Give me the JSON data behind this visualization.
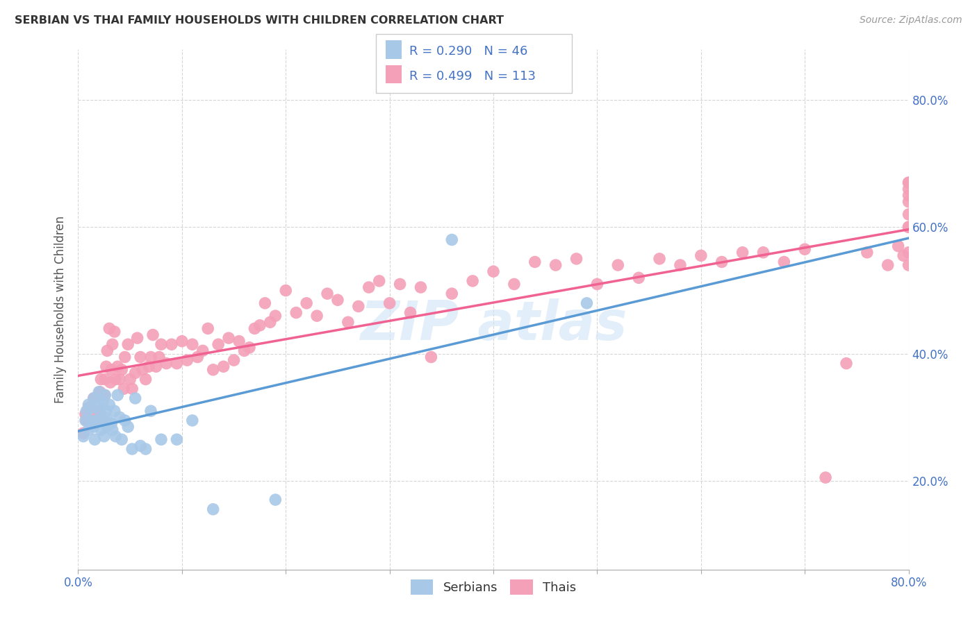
{
  "title": "SERBIAN VS THAI FAMILY HOUSEHOLDS WITH CHILDREN CORRELATION CHART",
  "source": "Source: ZipAtlas.com",
  "ylabel": "Family Households with Children",
  "xlim": [
    0.0,
    0.8
  ],
  "ylim": [
    0.06,
    0.88
  ],
  "yticks": [
    0.2,
    0.4,
    0.6,
    0.8
  ],
  "ytick_labels": [
    "20.0%",
    "40.0%",
    "60.0%",
    "80.0%"
  ],
  "xticks": [
    0.0,
    0.1,
    0.2,
    0.3,
    0.4,
    0.5,
    0.6,
    0.7,
    0.8
  ],
  "serbian_color": "#a8c8e8",
  "thai_color": "#f4a0b8",
  "serbian_line_color": "#5b9bd5",
  "thai_line_color": "#f06292",
  "r_serbian": 0.29,
  "n_serbian": 46,
  "r_thai": 0.499,
  "n_thai": 113,
  "background_color": "#ffffff",
  "grid_color": "#cccccc",
  "axis_label_color": "#4472c4",
  "serbian_x": [
    0.005,
    0.007,
    0.008,
    0.01,
    0.01,
    0.012,
    0.013,
    0.015,
    0.015,
    0.016,
    0.018,
    0.019,
    0.02,
    0.02,
    0.021,
    0.022,
    0.023,
    0.024,
    0.025,
    0.025,
    0.026,
    0.027,
    0.028,
    0.029,
    0.03,
    0.032,
    0.033,
    0.035,
    0.036,
    0.038,
    0.04,
    0.042,
    0.045,
    0.048,
    0.052,
    0.055,
    0.06,
    0.065,
    0.07,
    0.08,
    0.095,
    0.11,
    0.13,
    0.19,
    0.36,
    0.49
  ],
  "serbian_y": [
    0.27,
    0.295,
    0.31,
    0.28,
    0.32,
    0.295,
    0.315,
    0.285,
    0.33,
    0.265,
    0.295,
    0.32,
    0.34,
    0.295,
    0.31,
    0.28,
    0.295,
    0.325,
    0.3,
    0.27,
    0.335,
    0.31,
    0.285,
    0.295,
    0.32,
    0.29,
    0.28,
    0.31,
    0.27,
    0.335,
    0.3,
    0.265,
    0.295,
    0.285,
    0.25,
    0.33,
    0.255,
    0.25,
    0.31,
    0.265,
    0.265,
    0.295,
    0.155,
    0.17,
    0.58,
    0.48
  ],
  "thai_x": [
    0.005,
    0.007,
    0.008,
    0.01,
    0.012,
    0.013,
    0.015,
    0.016,
    0.018,
    0.02,
    0.021,
    0.022,
    0.023,
    0.025,
    0.026,
    0.027,
    0.028,
    0.03,
    0.031,
    0.032,
    0.033,
    0.035,
    0.036,
    0.038,
    0.04,
    0.042,
    0.044,
    0.045,
    0.048,
    0.05,
    0.052,
    0.055,
    0.057,
    0.06,
    0.062,
    0.065,
    0.068,
    0.07,
    0.072,
    0.075,
    0.078,
    0.08,
    0.085,
    0.09,
    0.095,
    0.1,
    0.105,
    0.11,
    0.115,
    0.12,
    0.125,
    0.13,
    0.135,
    0.14,
    0.145,
    0.15,
    0.155,
    0.16,
    0.165,
    0.17,
    0.175,
    0.18,
    0.185,
    0.19,
    0.2,
    0.21,
    0.22,
    0.23,
    0.24,
    0.25,
    0.26,
    0.27,
    0.28,
    0.29,
    0.3,
    0.31,
    0.32,
    0.33,
    0.34,
    0.36,
    0.38,
    0.4,
    0.42,
    0.44,
    0.46,
    0.48,
    0.5,
    0.52,
    0.54,
    0.56,
    0.58,
    0.6,
    0.62,
    0.64,
    0.66,
    0.68,
    0.7,
    0.72,
    0.74,
    0.76,
    0.78,
    0.79,
    0.795,
    0.8,
    0.8,
    0.8,
    0.8,
    0.8,
    0.8,
    0.8,
    0.8,
    0.8,
    0.8
  ],
  "thai_y": [
    0.275,
    0.305,
    0.295,
    0.315,
    0.29,
    0.305,
    0.33,
    0.29,
    0.295,
    0.31,
    0.34,
    0.36,
    0.295,
    0.335,
    0.36,
    0.38,
    0.405,
    0.44,
    0.355,
    0.375,
    0.415,
    0.435,
    0.36,
    0.38,
    0.36,
    0.375,
    0.345,
    0.395,
    0.415,
    0.36,
    0.345,
    0.37,
    0.425,
    0.395,
    0.375,
    0.36,
    0.38,
    0.395,
    0.43,
    0.38,
    0.395,
    0.415,
    0.385,
    0.415,
    0.385,
    0.42,
    0.39,
    0.415,
    0.395,
    0.405,
    0.44,
    0.375,
    0.415,
    0.38,
    0.425,
    0.39,
    0.42,
    0.405,
    0.41,
    0.44,
    0.445,
    0.48,
    0.45,
    0.46,
    0.5,
    0.465,
    0.48,
    0.46,
    0.495,
    0.485,
    0.45,
    0.475,
    0.505,
    0.515,
    0.48,
    0.51,
    0.465,
    0.505,
    0.395,
    0.495,
    0.515,
    0.53,
    0.51,
    0.545,
    0.54,
    0.55,
    0.51,
    0.54,
    0.52,
    0.55,
    0.54,
    0.555,
    0.545,
    0.56,
    0.56,
    0.545,
    0.565,
    0.205,
    0.385,
    0.56,
    0.54,
    0.57,
    0.555,
    0.54,
    0.56,
    0.6,
    0.62,
    0.64,
    0.67,
    0.6,
    0.66,
    0.67,
    0.65
  ]
}
